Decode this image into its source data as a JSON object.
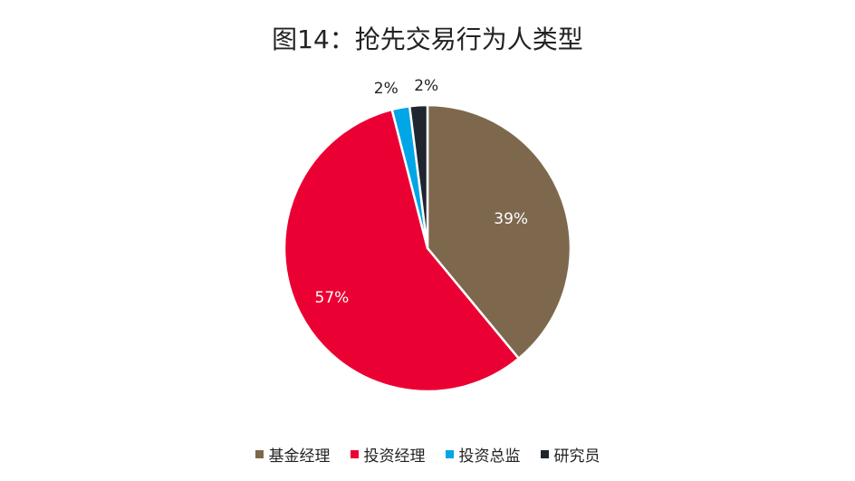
{
  "chart_data": {
    "type": "pie",
    "title": "图14：抢先交易行为人类型",
    "categories": [
      "基金经理",
      "投资经理",
      "投资总监",
      "研究员"
    ],
    "values": [
      39,
      57,
      2,
      2
    ],
    "labels": [
      "39%",
      "57%",
      "2%",
      "2%"
    ],
    "colors": [
      "#7E684D",
      "#EB0033",
      "#00A6E6",
      "#1F2630"
    ],
    "legend_position": "bottom"
  }
}
